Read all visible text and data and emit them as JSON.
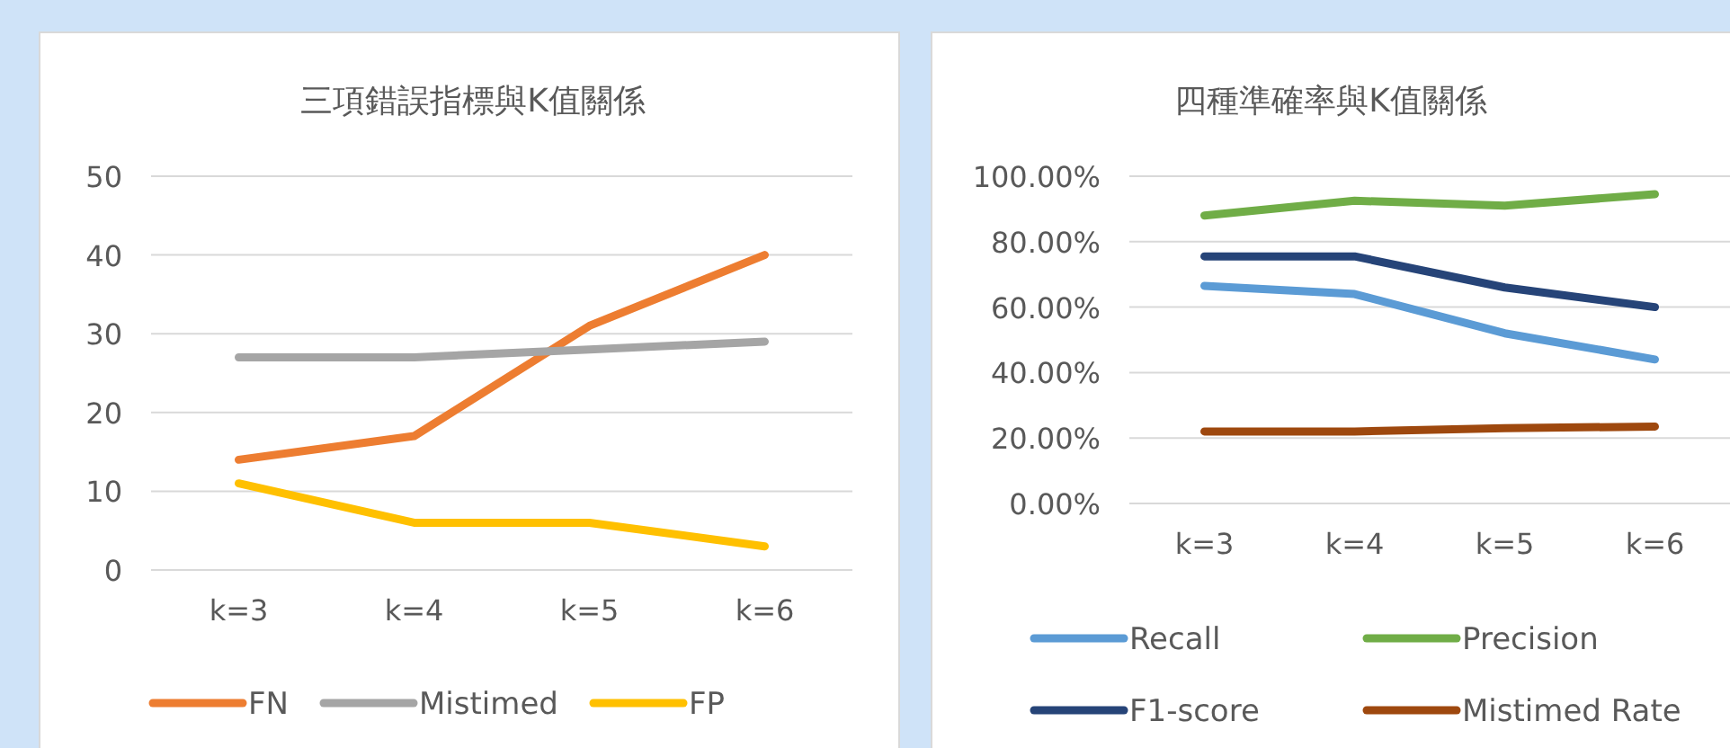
{
  "chart_data": [
    {
      "type": "line",
      "title": "三項錯誤指標與K值關係",
      "categories": [
        "k=3",
        "k=4",
        "k=5",
        "k=6"
      ],
      "series": [
        {
          "name": "FN",
          "color": "#ed7d31",
          "values": [
            14,
            17,
            31,
            40
          ]
        },
        {
          "name": "Mistimed",
          "color": "#a5a5a5",
          "values": [
            27,
            27,
            28,
            29
          ]
        },
        {
          "name": "FP",
          "color": "#ffc000",
          "values": [
            11,
            6,
            6,
            3
          ]
        }
      ],
      "ylim": [
        0,
        50
      ],
      "yticks": [
        0,
        10,
        20,
        30,
        40,
        50
      ],
      "grid": "y",
      "legend": "bottom"
    },
    {
      "type": "line",
      "title": "四種準確率與K值關係",
      "categories": [
        "k=3",
        "k=4",
        "k=5",
        "k=6"
      ],
      "series": [
        {
          "name": "Recall",
          "color": "#5b9bd5",
          "values": [
            66.5,
            64,
            52,
            44
          ]
        },
        {
          "name": "Precision",
          "color": "#70ad47",
          "values": [
            88,
            92.5,
            91,
            94.5
          ]
        },
        {
          "name": "F1-score",
          "color": "#264478",
          "values": [
            75.5,
            75.5,
            66,
            60
          ]
        },
        {
          "name": "Mistimed Rate",
          "color": "#9e480e",
          "values": [
            22,
            22,
            23,
            23.5
          ]
        }
      ],
      "ylim": [
        0,
        100
      ],
      "yticks": [
        {
          "value": 0,
          "label": "0.00%"
        },
        {
          "value": 20,
          "label": "20.00%"
        },
        {
          "value": 40,
          "label": "40.00%"
        },
        {
          "value": 60,
          "label": "60.00%"
        },
        {
          "value": 80,
          "label": "80.00%"
        },
        {
          "value": 100,
          "label": "100.00%"
        }
      ],
      "grid": "y",
      "legend": "bottom"
    }
  ]
}
